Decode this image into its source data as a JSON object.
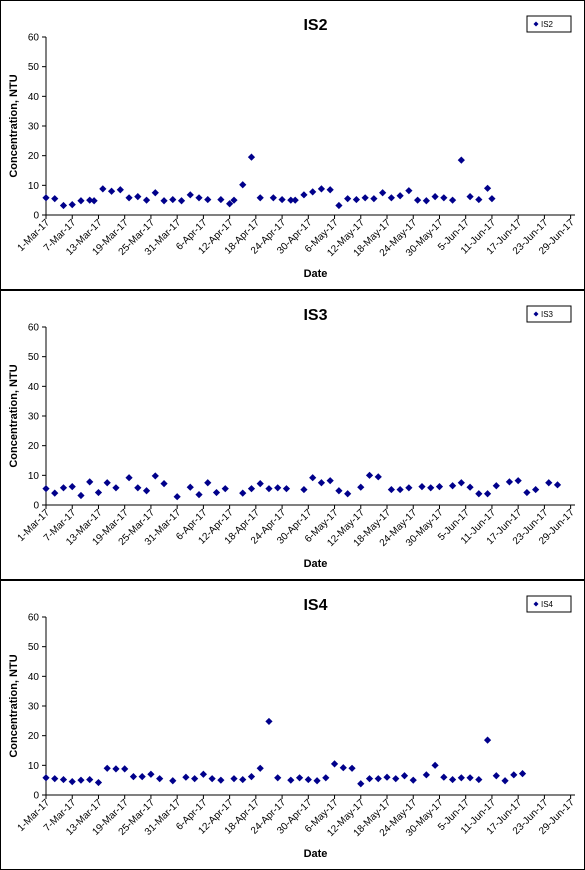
{
  "colors": {
    "marker": "#00008B",
    "axis": "#000000",
    "background": "#FFFFFF"
  },
  "chart_data": [
    {
      "type": "scatter",
      "title": "IS2",
      "xlabel": "Date",
      "ylabel": "Concentration, NTU",
      "ylim": [
        0,
        60
      ],
      "yticks": [
        0,
        10,
        20,
        30,
        40,
        50,
        60
      ],
      "xlim": [
        "1-Mar-17",
        "30-Jun-17"
      ],
      "xtick_labels": [
        "1-Mar-17",
        "7-Mar-17",
        "13-Mar-17",
        "19-Mar-17",
        "25-Mar-17",
        "31-Mar-17",
        "6-Apr-17",
        "12-Apr-17",
        "18-Apr-17",
        "24-Apr-17",
        "30-Apr-17",
        "6-May-17",
        "12-May-17",
        "18-May-17",
        "24-May-17",
        "30-May-17",
        "5-Jun-17",
        "11-Jun-17",
        "17-Jun-17",
        "23-Jun-17",
        "29-Jun-17"
      ],
      "legend": {
        "position": "top-right",
        "entries": [
          "IS2"
        ]
      },
      "grid": false,
      "series": [
        {
          "name": "IS2",
          "points": [
            [
              "1-Mar-17",
              5.8
            ],
            [
              "3-Mar-17",
              5.5
            ],
            [
              "5-Mar-17",
              3.2
            ],
            [
              "7-Mar-17",
              3.5
            ],
            [
              "9-Mar-17",
              4.8
            ],
            [
              "11-Mar-17",
              5.0
            ],
            [
              "12-Mar-17",
              4.8
            ],
            [
              "14-Mar-17",
              8.8
            ],
            [
              "16-Mar-17",
              8.0
            ],
            [
              "18-Mar-17",
              8.5
            ],
            [
              "20-Mar-17",
              5.8
            ],
            [
              "22-Mar-17",
              6.2
            ],
            [
              "24-Mar-17",
              5.0
            ],
            [
              "26-Mar-17",
              7.5
            ],
            [
              "28-Mar-17",
              4.8
            ],
            [
              "30-Mar-17",
              5.2
            ],
            [
              "1-Apr-17",
              4.8
            ],
            [
              "3-Apr-17",
              6.8
            ],
            [
              "5-Apr-17",
              5.8
            ],
            [
              "7-Apr-17",
              5.2
            ],
            [
              "10-Apr-17",
              5.2
            ],
            [
              "12-Apr-17",
              3.8
            ],
            [
              "13-Apr-17",
              5.0
            ],
            [
              "15-Apr-17",
              10.2
            ],
            [
              "17-Apr-17",
              19.5
            ],
            [
              "19-Apr-17",
              5.8
            ],
            [
              "22-Apr-17",
              5.8
            ],
            [
              "24-Apr-17",
              5.2
            ],
            [
              "26-Apr-17",
              5.0
            ],
            [
              "27-Apr-17",
              5.0
            ],
            [
              "29-Apr-17",
              6.8
            ],
            [
              "1-May-17",
              7.8
            ],
            [
              "3-May-17",
              8.8
            ],
            [
              "5-May-17",
              8.5
            ],
            [
              "7-May-17",
              3.2
            ],
            [
              "9-May-17",
              5.5
            ],
            [
              "11-May-17",
              5.2
            ],
            [
              "13-May-17",
              5.8
            ],
            [
              "15-May-17",
              5.5
            ],
            [
              "17-May-17",
              7.5
            ],
            [
              "19-May-17",
              5.8
            ],
            [
              "21-May-17",
              6.5
            ],
            [
              "23-May-17",
              8.2
            ],
            [
              "25-May-17",
              5.0
            ],
            [
              "27-May-17",
              4.8
            ],
            [
              "29-May-17",
              6.2
            ],
            [
              "31-May-17",
              5.8
            ],
            [
              "2-Jun-17",
              5.0
            ],
            [
              "4-Jun-17",
              18.5
            ],
            [
              "6-Jun-17",
              6.2
            ],
            [
              "8-Jun-17",
              5.2
            ],
            [
              "10-Jun-17",
              9.0
            ],
            [
              "11-Jun-17",
              5.5
            ]
          ]
        }
      ]
    },
    {
      "type": "scatter",
      "title": "IS3",
      "xlabel": "Date",
      "ylabel": "Concentration, NTU",
      "ylim": [
        0,
        60
      ],
      "yticks": [
        0,
        10,
        20,
        30,
        40,
        50,
        60
      ],
      "xlim": [
        "1-Mar-17",
        "30-Jun-17"
      ],
      "xtick_labels": [
        "1-Mar-17",
        "7-Mar-17",
        "13-Mar-17",
        "19-Mar-17",
        "25-Mar-17",
        "31-Mar-17",
        "6-Apr-17",
        "12-Apr-17",
        "18-Apr-17",
        "24-Apr-17",
        "30-Apr-17",
        "6-May-17",
        "12-May-17",
        "18-May-17",
        "24-May-17",
        "30-May-17",
        "5-Jun-17",
        "11-Jun-17",
        "17-Jun-17",
        "23-Jun-17",
        "29-Jun-17"
      ],
      "legend": {
        "position": "top-right",
        "entries": [
          "IS3"
        ]
      },
      "grid": false,
      "series": [
        {
          "name": "IS3",
          "points": [
            [
              "1-Mar-17",
              5.5
            ],
            [
              "3-Mar-17",
              4.0
            ],
            [
              "5-Mar-17",
              5.8
            ],
            [
              "7-Mar-17",
              6.2
            ],
            [
              "9-Mar-17",
              3.2
            ],
            [
              "11-Mar-17",
              7.8
            ],
            [
              "13-Mar-17",
              4.2
            ],
            [
              "15-Mar-17",
              7.5
            ],
            [
              "17-Mar-17",
              5.8
            ],
            [
              "20-Mar-17",
              9.2
            ],
            [
              "22-Mar-17",
              5.8
            ],
            [
              "24-Mar-17",
              4.8
            ],
            [
              "26-Mar-17",
              9.8
            ],
            [
              "28-Mar-17",
              7.2
            ],
            [
              "31-Mar-17",
              2.8
            ],
            [
              "3-Apr-17",
              6.0
            ],
            [
              "5-Apr-17",
              3.5
            ],
            [
              "7-Apr-17",
              7.5
            ],
            [
              "9-Apr-17",
              4.2
            ],
            [
              "11-Apr-17",
              5.5
            ],
            [
              "15-Apr-17",
              4.0
            ],
            [
              "17-Apr-17",
              5.5
            ],
            [
              "19-Apr-17",
              7.2
            ],
            [
              "21-Apr-17",
              5.5
            ],
            [
              "23-Apr-17",
              5.8
            ],
            [
              "25-Apr-17",
              5.5
            ],
            [
              "29-Apr-17",
              5.2
            ],
            [
              "1-May-17",
              9.2
            ],
            [
              "3-May-17",
              7.5
            ],
            [
              "5-May-17",
              8.2
            ],
            [
              "7-May-17",
              4.8
            ],
            [
              "9-May-17",
              3.8
            ],
            [
              "12-May-17",
              6.0
            ],
            [
              "14-May-17",
              10.0
            ],
            [
              "16-May-17",
              9.5
            ],
            [
              "19-May-17",
              5.2
            ],
            [
              "21-May-17",
              5.2
            ],
            [
              "23-May-17",
              5.8
            ],
            [
              "26-May-17",
              6.2
            ],
            [
              "28-May-17",
              5.8
            ],
            [
              "30-May-17",
              6.2
            ],
            [
              "2-Jun-17",
              6.5
            ],
            [
              "4-Jun-17",
              7.5
            ],
            [
              "6-Jun-17",
              6.0
            ],
            [
              "8-Jun-17",
              3.8
            ],
            [
              "10-Jun-17",
              3.8
            ],
            [
              "12-Jun-17",
              6.5
            ],
            [
              "15-Jun-17",
              7.8
            ],
            [
              "17-Jun-17",
              8.2
            ],
            [
              "19-Jun-17",
              4.2
            ],
            [
              "21-Jun-17",
              5.2
            ],
            [
              "24-Jun-17",
              7.5
            ],
            [
              "26-Jun-17",
              6.8
            ]
          ]
        }
      ]
    },
    {
      "type": "scatter",
      "title": "IS4",
      "xlabel": "Date",
      "ylabel": "Concentration, NTU",
      "ylim": [
        0,
        60
      ],
      "yticks": [
        0,
        10,
        20,
        30,
        40,
        50,
        60
      ],
      "xlim": [
        "1-Mar-17",
        "30-Jun-17"
      ],
      "xtick_labels": [
        "1-Mar-17",
        "7-Mar-17",
        "13-Mar-17",
        "19-Mar-17",
        "25-Mar-17",
        "31-Mar-17",
        "6-Apr-17",
        "12-Apr-17",
        "18-Apr-17",
        "24-Apr-17",
        "30-Apr-17",
        "6-May-17",
        "12-May-17",
        "18-May-17",
        "24-May-17",
        "30-May-17",
        "5-Jun-17",
        "11-Jun-17",
        "17-Jun-17",
        "23-Jun-17",
        "29-Jun-17"
      ],
      "legend": {
        "position": "top-right",
        "entries": [
          "IS4"
        ]
      },
      "grid": false,
      "series": [
        {
          "name": "IS4",
          "points": [
            [
              "1-Mar-17",
              5.8
            ],
            [
              "3-Mar-17",
              5.5
            ],
            [
              "5-Mar-17",
              5.2
            ],
            [
              "7-Mar-17",
              4.5
            ],
            [
              "9-Mar-17",
              5.0
            ],
            [
              "11-Mar-17",
              5.2
            ],
            [
              "13-Mar-17",
              4.2
            ],
            [
              "15-Mar-17",
              9.0
            ],
            [
              "17-Mar-17",
              8.8
            ],
            [
              "19-Mar-17",
              8.8
            ],
            [
              "21-Mar-17",
              6.2
            ],
            [
              "23-Mar-17",
              6.2
            ],
            [
              "25-Mar-17",
              7.0
            ],
            [
              "27-Mar-17",
              5.5
            ],
            [
              "30-Mar-17",
              4.8
            ],
            [
              "2-Apr-17",
              6.0
            ],
            [
              "4-Apr-17",
              5.5
            ],
            [
              "6-Apr-17",
              7.0
            ],
            [
              "8-Apr-17",
              5.5
            ],
            [
              "10-Apr-17",
              5.0
            ],
            [
              "13-Apr-17",
              5.5
            ],
            [
              "15-Apr-17",
              5.2
            ],
            [
              "17-Apr-17",
              6.2
            ],
            [
              "19-Apr-17",
              9.0
            ],
            [
              "21-Apr-17",
              24.8
            ],
            [
              "23-Apr-17",
              5.8
            ],
            [
              "26-Apr-17",
              5.0
            ],
            [
              "28-Apr-17",
              5.8
            ],
            [
              "30-Apr-17",
              5.2
            ],
            [
              "2-May-17",
              4.8
            ],
            [
              "4-May-17",
              5.8
            ],
            [
              "6-May-17",
              10.5
            ],
            [
              "8-May-17",
              9.2
            ],
            [
              "10-May-17",
              9.0
            ],
            [
              "12-May-17",
              3.8
            ],
            [
              "14-May-17",
              5.5
            ],
            [
              "16-May-17",
              5.5
            ],
            [
              "18-May-17",
              6.0
            ],
            [
              "20-May-17",
              5.5
            ],
            [
              "22-May-17",
              6.5
            ],
            [
              "24-May-17",
              5.0
            ],
            [
              "27-May-17",
              6.8
            ],
            [
              "29-May-17",
              10.0
            ],
            [
              "31-May-17",
              6.0
            ],
            [
              "2-Jun-17",
              5.2
            ],
            [
              "4-Jun-17",
              5.8
            ],
            [
              "6-Jun-17",
              5.8
            ],
            [
              "8-Jun-17",
              5.2
            ],
            [
              "10-Jun-17",
              18.5
            ],
            [
              "12-Jun-17",
              6.5
            ],
            [
              "14-Jun-17",
              4.8
            ],
            [
              "16-Jun-17",
              6.8
            ],
            [
              "18-Jun-17",
              7.2
            ]
          ]
        }
      ]
    }
  ]
}
